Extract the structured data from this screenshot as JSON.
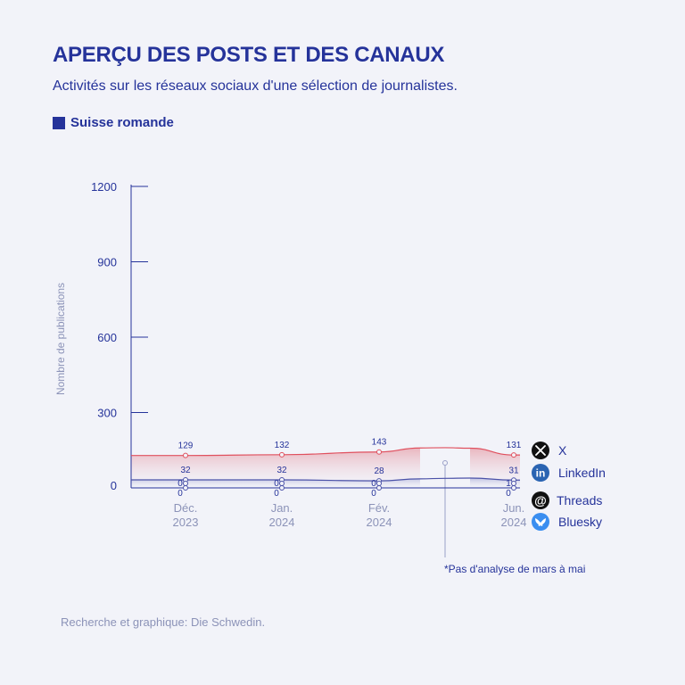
{
  "header": {
    "title": "APERÇU DES POSTS ET DES CANAUX",
    "subtitle": "Activités sur les réseaux sociaux d'une sélection de journalistes.",
    "region_legend": "Suisse romande"
  },
  "footer": {
    "source": "Recherche et graphique: Die Schwedin."
  },
  "chart_data": {
    "type": "area",
    "ylabel": "Nombre de publications",
    "ylim": [
      0,
      1200
    ],
    "yticks": [
      "1200",
      "900",
      "600",
      "300",
      "0"
    ],
    "categories": [
      {
        "month": "Déc.",
        "year": "2023"
      },
      {
        "month": "Jan.",
        "year": "2024"
      },
      {
        "month": "Fév.",
        "year": "2024"
      },
      {
        "month": "Jun.",
        "year": "2024"
      }
    ],
    "series": [
      {
        "name": "X",
        "color": "#e0505e",
        "icon": "x-logo-icon",
        "values": [
          129,
          132,
          143,
          131
        ]
      },
      {
        "name": "LinkedIn",
        "color": "#4b52a8",
        "icon": "linkedin-logo-icon",
        "values": [
          32,
          32,
          28,
          31
        ]
      },
      {
        "name": "Threads",
        "color": "#9aa0c8",
        "icon": "threads-logo-icon",
        "values": [
          0,
          0,
          0,
          1
        ]
      },
      {
        "name": "Bluesky",
        "color": "#9aa0c8",
        "icon": "bluesky-logo-icon",
        "values": [
          0,
          0,
          0,
          0
        ]
      }
    ],
    "annotation": "*Pas d'analyse de mars à mai"
  }
}
